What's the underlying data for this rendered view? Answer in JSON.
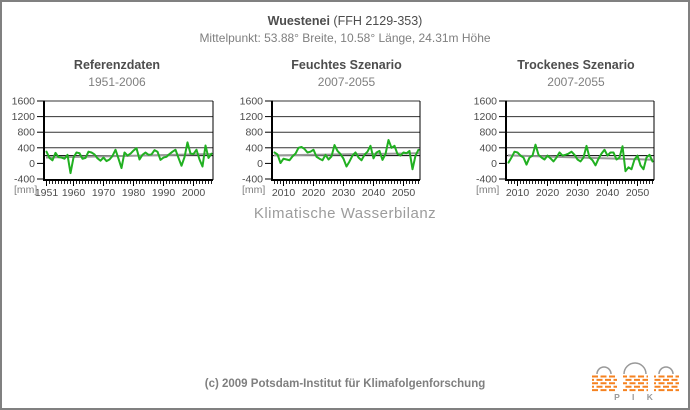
{
  "page": {
    "title_bold": "Wuestenei",
    "title_rest": " (FFH 2129-353)",
    "subtitle": "Mittelpunkt: 53.88° Breite, 10.58° Länge, 24.31m Höhe",
    "center_caption": "Klimatische Wasserbilanz",
    "footer": "(c) 2009 Potsdam-Institut für Klimafolgenforschung"
  },
  "logo": {
    "text": "P I K"
  },
  "colors": {
    "data_green": "#21b021",
    "trend_gray": "#999999",
    "reference_black": "#000000",
    "grid_line": "#333333",
    "axis_black": "#000000",
    "tick_label_gray": "#4d4d4d",
    "title_gray": "#4d4d4d",
    "subtitle_gray": "#7f7f7f",
    "caption_gray": "#9c9c9c",
    "logo_orange": "#f58220",
    "logo_dome_gray": "#999999",
    "frame_gray": "#808080"
  },
  "chart_data": [
    {
      "type": "line",
      "title": "Referenzdaten",
      "subtitle": "1951-2006",
      "ylabel": "[mm]",
      "ylim": [
        -400,
        1600
      ],
      "yticks": [
        1600,
        1200,
        800,
        400,
        0,
        -400
      ],
      "gridlines": [
        1600,
        1200,
        800,
        400
      ],
      "x_start": 1951,
      "x_end": 2006,
      "xticks": [
        1951,
        1960,
        1970,
        1980,
        1990,
        2000
      ],
      "reference_line": 200,
      "trend": [
        150,
        240
      ],
      "values": [
        300,
        140,
        80,
        270,
        160,
        150,
        120,
        220,
        -250,
        150,
        280,
        260,
        120,
        140,
        300,
        280,
        230,
        130,
        70,
        150,
        60,
        100,
        190,
        350,
        120,
        -120,
        280,
        200,
        250,
        330,
        390,
        100,
        220,
        280,
        220,
        230,
        340,
        300,
        90,
        150,
        170,
        240,
        300,
        350,
        140,
        -60,
        160,
        540,
        250,
        240,
        350,
        100,
        -80,
        460,
        140,
        250
      ]
    },
    {
      "type": "line",
      "title": "Feuchtes Szenario",
      "subtitle": "2007-2055",
      "ylabel": "[mm]",
      "ylim": [
        -400,
        1600
      ],
      "yticks": [
        1600,
        1200,
        800,
        400,
        0,
        -400
      ],
      "gridlines": [
        1600,
        1200,
        800,
        400
      ],
      "x_start": 2007,
      "x_end": 2055,
      "xticks": [
        2010,
        2020,
        2030,
        2040,
        2050
      ],
      "reference_line": 200,
      "trend": [
        205,
        260
      ],
      "values": [
        280,
        230,
        10,
        120,
        100,
        80,
        180,
        250,
        400,
        420,
        370,
        280,
        300,
        350,
        170,
        120,
        80,
        220,
        100,
        180,
        470,
        320,
        240,
        120,
        -80,
        50,
        200,
        280,
        150,
        80,
        220,
        300,
        450,
        130,
        280,
        320,
        90,
        240,
        600,
        400,
        450,
        240,
        200,
        280,
        260,
        320,
        -150,
        200,
        350
      ]
    },
    {
      "type": "line",
      "title": "Trockenes Szenario",
      "subtitle": "2007-2055",
      "ylabel": "[mm]",
      "ylim": [
        -400,
        1600
      ],
      "yticks": [
        1600,
        1200,
        800,
        400,
        0,
        -400
      ],
      "gridlines": [
        1600,
        1200,
        800,
        400
      ],
      "x_start": 2007,
      "x_end": 2055,
      "xticks": [
        2010,
        2020,
        2030,
        2040,
        2050
      ],
      "reference_line": 200,
      "trend": [
        205,
        95
      ],
      "values": [
        20,
        150,
        300,
        280,
        200,
        150,
        -30,
        150,
        200,
        480,
        220,
        150,
        100,
        200,
        130,
        50,
        150,
        280,
        200,
        220,
        250,
        300,
        220,
        100,
        50,
        150,
        450,
        150,
        80,
        -50,
        120,
        250,
        350,
        200,
        280,
        280,
        100,
        150,
        440,
        -200,
        -100,
        -150,
        100,
        200,
        -50,
        -150,
        150,
        220,
        50
      ]
    }
  ]
}
